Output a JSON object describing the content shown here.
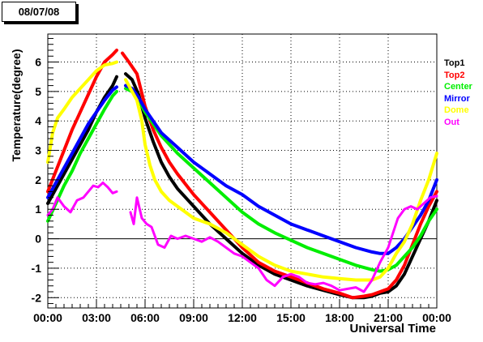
{
  "date_label": "08/07/08",
  "chart_data": {
    "type": "line",
    "title": "",
    "xlabel": "Universal Time",
    "ylabel": "Temperature(degree)",
    "xlim": [
      0,
      24
    ],
    "ylim": [
      -2.35,
      6.95
    ],
    "x_ticks": [
      "00:00",
      "03:00",
      "06:00",
      "09:00",
      "12:00",
      "15:00",
      "18:00",
      "21:00",
      "00:00"
    ],
    "y_ticks": [
      "-2",
      "-1",
      "0",
      "1",
      "2",
      "3",
      "4",
      "5",
      "6"
    ],
    "grid": "dotted",
    "legend_position": "right",
    "series": [
      {
        "name": "Top1",
        "color": "#000000",
        "x": [
          0.0,
          0.5,
          1.0,
          1.5,
          2.0,
          2.5,
          3.0,
          3.5,
          4.0,
          4.25,
          null,
          4.8,
          5.2,
          5.6,
          6.0,
          6.5,
          7.0,
          7.5,
          8.0,
          9.0,
          10.0,
          11.0,
          12.0,
          13.0,
          14.0,
          15.0,
          16.0,
          17.0,
          18.0,
          18.8,
          19.5,
          20.0,
          20.5,
          21.0,
          21.5,
          22.0,
          22.5,
          23.0,
          23.5,
          24.0
        ],
        "y": [
          1.2,
          1.7,
          2.2,
          2.7,
          3.2,
          3.7,
          4.3,
          4.8,
          5.2,
          5.5,
          null,
          5.6,
          5.4,
          4.9,
          4.1,
          3.3,
          2.6,
          2.1,
          1.7,
          1.1,
          0.5,
          0.0,
          -0.5,
          -0.9,
          -1.2,
          -1.4,
          -1.6,
          -1.75,
          -1.9,
          -2.0,
          -2.0,
          -1.95,
          -1.85,
          -1.8,
          -1.6,
          -1.2,
          -0.6,
          0.0,
          0.6,
          1.3
        ]
      },
      {
        "name": "Top2",
        "color": "#ff0000",
        "x": [
          0.0,
          0.5,
          1.0,
          1.5,
          2.0,
          2.5,
          3.0,
          3.5,
          4.0,
          4.25,
          null,
          4.6,
          5.0,
          5.5,
          6.0,
          6.5,
          7.0,
          7.5,
          8.0,
          9.0,
          10.0,
          11.0,
          12.0,
          13.0,
          14.0,
          15.0,
          16.0,
          17.0,
          18.0,
          18.8,
          19.5,
          20.0,
          20.5,
          21.0,
          21.5,
          22.0,
          22.5,
          23.0,
          23.5,
          24.0
        ],
        "y": [
          1.6,
          2.3,
          3.0,
          3.7,
          4.3,
          4.9,
          5.5,
          6.0,
          6.25,
          6.4,
          null,
          6.3,
          6.0,
          5.6,
          4.5,
          3.7,
          3.1,
          2.6,
          2.2,
          1.5,
          0.9,
          0.3,
          -0.3,
          -0.8,
          -1.1,
          -1.3,
          -1.5,
          -1.7,
          -1.85,
          -2.0,
          -1.95,
          -1.9,
          -1.8,
          -1.7,
          -1.4,
          -0.9,
          -0.2,
          0.5,
          1.1,
          1.6
        ]
      },
      {
        "name": "Center",
        "color": "#00ee00",
        "x": [
          0.0,
          0.5,
          1.0,
          1.5,
          2.0,
          2.5,
          3.0,
          3.5,
          4.0,
          4.25,
          null,
          4.8,
          5.2,
          5.6,
          6.0,
          6.5,
          7.0,
          8.0,
          9.0,
          10.0,
          11.0,
          12.0,
          13.0,
          14.0,
          15.0,
          16.0,
          17.0,
          18.0,
          19.0,
          20.0,
          20.5,
          21.0,
          21.5,
          22.0,
          22.5,
          23.0,
          23.5,
          24.0
        ],
        "y": [
          0.6,
          1.2,
          1.8,
          2.3,
          2.9,
          3.4,
          3.9,
          4.4,
          4.85,
          5.0,
          null,
          5.1,
          5.0,
          4.7,
          4.3,
          3.9,
          3.5,
          2.9,
          2.4,
          1.9,
          1.4,
          0.9,
          0.5,
          0.2,
          -0.05,
          -0.3,
          -0.5,
          -0.7,
          -0.9,
          -1.05,
          -1.1,
          -1.05,
          -0.9,
          -0.6,
          -0.3,
          0.1,
          0.6,
          1.0
        ]
      },
      {
        "name": "Mirror",
        "color": "#0000ff",
        "x": [
          0.0,
          0.5,
          1.0,
          1.5,
          2.0,
          2.5,
          3.0,
          3.5,
          4.0,
          4.25,
          null,
          4.8,
          5.2,
          5.6,
          6.0,
          6.5,
          7.0,
          8.0,
          9.0,
          10.0,
          11.0,
          12.0,
          13.0,
          14.0,
          15.0,
          16.0,
          17.0,
          18.0,
          19.0,
          20.0,
          20.5,
          21.0,
          21.5,
          22.0,
          22.5,
          23.0,
          23.5,
          24.0
        ],
        "y": [
          1.4,
          1.9,
          2.4,
          2.9,
          3.4,
          3.9,
          4.3,
          4.7,
          5.05,
          5.15,
          null,
          5.2,
          5.1,
          4.8,
          4.4,
          4.0,
          3.6,
          3.1,
          2.6,
          2.2,
          1.8,
          1.5,
          1.1,
          0.8,
          0.5,
          0.3,
          0.1,
          -0.1,
          -0.3,
          -0.45,
          -0.5,
          -0.5,
          -0.3,
          0.0,
          0.4,
          0.8,
          1.3,
          2.0
        ]
      },
      {
        "name": "Dome",
        "color": "#ffff00",
        "x": [
          0.0,
          0.3,
          0.6,
          1.0,
          1.5,
          2.0,
          2.5,
          3.0,
          3.5,
          4.0,
          4.25,
          null,
          4.8,
          5.2,
          5.5,
          5.8,
          6.0,
          6.3,
          6.6,
          7.0,
          7.5,
          8.0,
          8.5,
          9.0,
          10.0,
          11.0,
          12.0,
          13.0,
          14.0,
          15.0,
          16.0,
          17.0,
          18.0,
          19.0,
          20.0,
          20.5,
          21.0,
          21.5,
          22.0,
          22.5,
          23.0,
          23.5,
          24.0
        ],
        "y": [
          2.6,
          3.6,
          4.1,
          4.4,
          4.8,
          5.1,
          5.4,
          5.7,
          5.9,
          5.95,
          6.0,
          null,
          5.4,
          5.0,
          4.7,
          4.0,
          3.2,
          2.5,
          2.0,
          1.6,
          1.3,
          1.1,
          0.9,
          0.7,
          0.5,
          0.2,
          -0.2,
          -0.6,
          -0.9,
          -1.1,
          -1.2,
          -1.3,
          -1.35,
          -1.4,
          -1.4,
          -1.3,
          -1.0,
          -0.5,
          -0.1,
          0.5,
          1.3,
          2.0,
          2.9
        ]
      },
      {
        "name": "Out",
        "color": "#ff00ff",
        "x": [
          0.0,
          0.3,
          0.6,
          1.0,
          1.4,
          1.8,
          2.2,
          2.5,
          2.8,
          3.1,
          3.4,
          3.7,
          4.0,
          4.25,
          null,
          5.1,
          5.3,
          5.5,
          5.8,
          6.1,
          6.4,
          6.8,
          7.2,
          7.6,
          8.0,
          8.5,
          9.0,
          9.5,
          10.0,
          10.5,
          11.0,
          11.5,
          12.0,
          12.5,
          13.0,
          13.5,
          14.0,
          14.5,
          15.0,
          15.5,
          16.0,
          16.5,
          17.0,
          17.5,
          18.0,
          18.5,
          19.0,
          19.5,
          20.0,
          20.5,
          21.0,
          21.3,
          21.6,
          22.0,
          22.4,
          22.8,
          23.2,
          23.6,
          24.0
        ],
        "y": [
          0.8,
          1.0,
          1.4,
          1.1,
          0.9,
          1.3,
          1.4,
          1.6,
          1.8,
          1.75,
          1.9,
          1.75,
          1.55,
          1.6,
          null,
          0.9,
          0.5,
          1.4,
          0.7,
          0.5,
          0.4,
          -0.2,
          -0.3,
          0.1,
          0.0,
          0.1,
          0.0,
          -0.1,
          0.05,
          -0.1,
          -0.3,
          -0.5,
          -0.6,
          -0.8,
          -1.0,
          -1.4,
          -1.6,
          -1.3,
          -1.2,
          -1.3,
          -1.5,
          -1.55,
          -1.5,
          -1.6,
          -1.75,
          -1.7,
          -1.65,
          -1.8,
          -1.4,
          -0.8,
          -0.3,
          0.2,
          0.7,
          1.0,
          1.1,
          1.0,
          1.2,
          1.4,
          1.45
        ]
      }
    ]
  }
}
